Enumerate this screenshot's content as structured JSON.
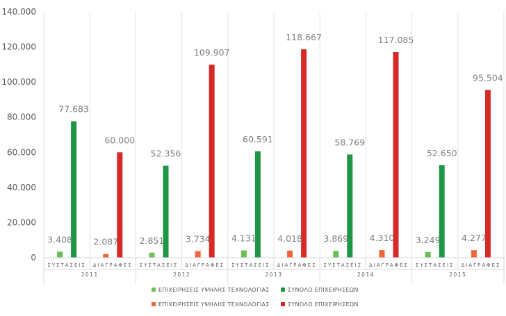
{
  "chart_data": {
    "type": "bar",
    "title": "",
    "xlabel": "",
    "ylabel": "",
    "ylim": [
      0,
      140000
    ],
    "yticks": [
      0,
      20000,
      40000,
      60000,
      80000,
      100000,
      120000,
      140000
    ],
    "ytick_labels": [
      "0",
      "20.000",
      "40.000",
      "60.000",
      "80.000",
      "100.000",
      "120.000",
      "140.000"
    ],
    "grid": "vertical-category-separators",
    "legend_position": "bottom",
    "years": [
      "2011",
      "2012",
      "2013",
      "2014",
      "2015"
    ],
    "subcategories": [
      "ΣΥΣΤΑΣΕΙΣ",
      "ΔΙΑΓΡΑΦΕΣ"
    ],
    "series": [
      {
        "name": "ΕΠΙΧΕΙΡΗΣΕΙΣ ΥΨΗΛΗΣ ΤΕΧΝΟΛΟΓΙΑΣ",
        "subcategory": "ΣΥΣΤΑΣΕΙΣ",
        "color": "#6abf57",
        "values": [
          3408,
          2851,
          4131,
          3869,
          3249
        ],
        "labels": [
          "3.408",
          "2.851",
          "4.131",
          "3.869",
          "3.249"
        ]
      },
      {
        "name": "ΣΥΝΟΛΟ ΕΠΙΧΕΙΡΗΣΕΩΝ",
        "subcategory": "ΣΥΣΤΑΣΕΙΣ",
        "color": "#1e9644",
        "values": [
          77683,
          52356,
          60591,
          58769,
          52650
        ],
        "labels": [
          "77.683",
          "52.356",
          "60.591",
          "58.769",
          "52.650"
        ]
      },
      {
        "name": "ΕΠΙΧΕΙΡΗΣΕΙΣ ΥΨΗΛΗΣ ΤΕΧΝΟΛΟΓΙΑΣ",
        "subcategory": "ΔΙΑΓΡΑΦΕΣ",
        "color": "#f0663c",
        "values": [
          2087,
          3734,
          4018,
          4310,
          4277
        ],
        "labels": [
          "2.087",
          "3.734",
          "4.018",
          "4.310",
          "4.277"
        ]
      },
      {
        "name": "ΣΥΝΟΛΟ ΕΠΙΧΕΙΡΗΣΕΩΝ",
        "subcategory": "ΔΙΑΓΡΑΦΕΣ",
        "color": "#d52a27",
        "values": [
          60000,
          109907,
          118667,
          117085,
          95504
        ],
        "labels": [
          "60.000",
          "109.907",
          "118.667",
          "117.085",
          "95.504"
        ]
      }
    ]
  }
}
